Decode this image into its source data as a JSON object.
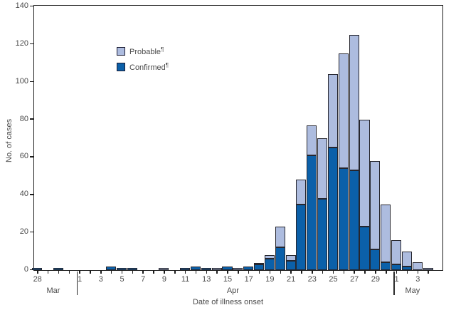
{
  "figure": {
    "y_axis_label": "No. of cases",
    "x_axis_label": "Date of illness onset",
    "legend": [
      {
        "label": "Probable",
        "footnote_mark": "¶",
        "color": "#adbcdf"
      },
      {
        "label": "Confirmed",
        "footnote_mark": "¶",
        "color": "#0b60a9"
      }
    ]
  },
  "colors": {
    "confirmed": "#0b60a9",
    "probable": "#adbcdf",
    "bar_outline": "#26262e",
    "axis": "#1c1c1c",
    "text": "#4a4a4a",
    "background": "#ffffff"
  },
  "chart_data": {
    "type": "bar",
    "stacked": true,
    "title": "",
    "xlabel": "Date of illness onset",
    "ylabel": "No. of cases",
    "ylim": [
      0,
      140
    ],
    "y_ticks": [
      0,
      20,
      40,
      60,
      80,
      100,
      120,
      140
    ],
    "grid": false,
    "legend_position": "upper-left-inside",
    "categories": [
      "Mar 28",
      "Mar 29",
      "Mar 30",
      "Mar 31",
      "Apr 1",
      "Apr 2",
      "Apr 3",
      "Apr 4",
      "Apr 5",
      "Apr 6",
      "Apr 7",
      "Apr 8",
      "Apr 9",
      "Apr 10",
      "Apr 11",
      "Apr 12",
      "Apr 13",
      "Apr 14",
      "Apr 15",
      "Apr 16",
      "Apr 17",
      "Apr 18",
      "Apr 19",
      "Apr 20",
      "Apr 21",
      "Apr 22",
      "Apr 23",
      "Apr 24",
      "Apr 25",
      "Apr 26",
      "Apr 27",
      "Apr 28",
      "Apr 29",
      "Apr 30",
      "May 1",
      "May 2",
      "May 3",
      "May 4"
    ],
    "tick_labels": [
      "28",
      "",
      "",
      "",
      "1",
      "",
      "3",
      "",
      "5",
      "",
      "7",
      "",
      "9",
      "",
      "11",
      "",
      "13",
      "",
      "15",
      "",
      "17",
      "",
      "19",
      "",
      "21",
      "",
      "23",
      "",
      "25",
      "",
      "27",
      "",
      "29",
      "",
      "1",
      "",
      "3",
      ""
    ],
    "month_groups": [
      {
        "label": "Mar",
        "start": 0,
        "end": 3
      },
      {
        "label": "Apr",
        "start": 4,
        "end": 33
      },
      {
        "label": "May",
        "start": 34,
        "end": 37
      }
    ],
    "series": [
      {
        "name": "Confirmed",
        "color": "#0b60a9",
        "values": [
          1,
          0,
          1,
          0,
          0,
          0,
          0,
          2,
          1,
          1,
          0,
          0,
          0,
          0,
          1,
          2,
          1,
          0,
          2,
          0,
          2,
          3,
          6,
          12,
          5,
          35,
          61,
          38,
          65,
          54,
          53,
          23,
          11,
          4,
          3,
          2,
          0,
          0
        ]
      },
      {
        "name": "Probable",
        "color": "#adbcdf",
        "values": [
          0,
          0,
          0,
          0,
          0,
          0,
          0,
          0,
          0,
          0,
          0,
          0,
          1,
          0,
          0,
          0,
          0,
          1,
          0,
          1,
          0,
          1,
          2,
          11,
          3,
          13,
          16,
          32,
          39,
          61,
          72,
          57,
          47,
          31,
          13,
          8,
          4,
          1
        ]
      }
    ]
  }
}
